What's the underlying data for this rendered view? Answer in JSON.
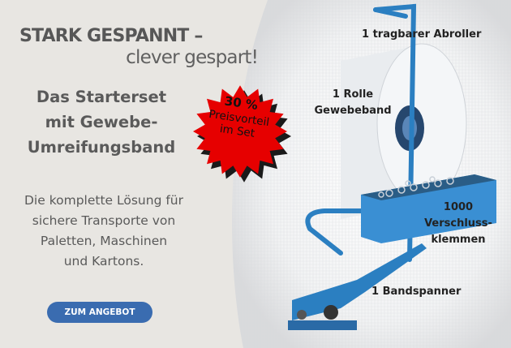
{
  "headline": {
    "line1": "STARK GESPANNT –",
    "line2": "clever gespart!"
  },
  "subheadline": {
    "lines": [
      "Das Starterset",
      "mit Gewebe-",
      "Umreifungsband"
    ]
  },
  "badge": {
    "percent": "30 %",
    "line1": "Preisvorteil",
    "line2": "im Set",
    "color": "#e60000"
  },
  "description": {
    "lines": [
      "Die komplette Lösung für",
      "sichere Transporte von",
      "Paletten, Maschinen",
      "und Kartons."
    ]
  },
  "cta": {
    "label": "ZUM ANGEBOT",
    "color": "#3a6cb0"
  },
  "products": {
    "dispenser": "1 tragbarer Abroller",
    "roll": [
      "1 Rolle",
      "Gewebeband"
    ],
    "clips": [
      "1000",
      "Verschluss-",
      "klemmen"
    ],
    "tensioner": "1 Bandspanner"
  }
}
